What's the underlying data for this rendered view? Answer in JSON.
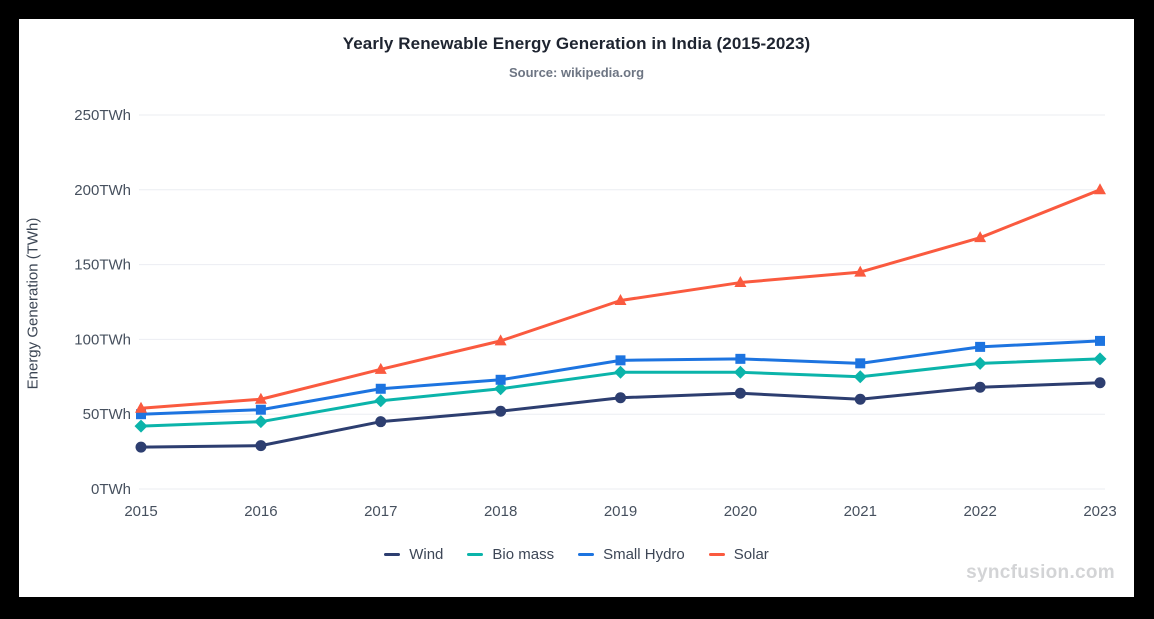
{
  "header": {
    "title": "Yearly Renewable Energy Generation in India (2015-2023)",
    "subtitle": "Source: wikipedia.org"
  },
  "watermark": "syncfusion.com",
  "colors": {
    "wind": "#2d3e70",
    "biomass": "#0bb4aa",
    "small_hydro": "#1d74e0",
    "solar": "#fa5a3f",
    "gridline": "#ebedf2",
    "tick_text": "#46505e"
  },
  "chart_data": {
    "type": "line",
    "title": "Yearly Renewable Energy Generation in India (2015-2023)",
    "subtitle": "Source: wikipedia.org",
    "xlabel": "",
    "ylabel": "Energy Generation (TWh)",
    "categories": [
      "2015",
      "2016",
      "2017",
      "2018",
      "2019",
      "2020",
      "2021",
      "2022",
      "2023"
    ],
    "series": [
      {
        "name": "Wind",
        "marker": "circle",
        "color": "#2d3e70",
        "values": [
          28,
          29,
          45,
          52,
          61,
          64,
          60,
          68,
          71
        ]
      },
      {
        "name": "Bio mass",
        "marker": "diamond",
        "color": "#0bb4aa",
        "values": [
          42,
          45,
          59,
          67,
          78,
          78,
          75,
          84,
          87
        ]
      },
      {
        "name": "Small Hydro",
        "marker": "square",
        "color": "#1d74e0",
        "values": [
          50,
          53,
          67,
          73,
          86,
          87,
          84,
          95,
          99
        ]
      },
      {
        "name": "Solar",
        "marker": "triangle",
        "color": "#fa5a3f",
        "values": [
          54,
          60,
          80,
          99,
          126,
          138,
          145,
          168,
          200
        ]
      }
    ],
    "ylim": [
      0,
      250
    ],
    "ytick_interval": 50,
    "ytick_labels": [
      "0TWh",
      "50TWh",
      "100TWh",
      "150TWh",
      "200TWh",
      "250TWh"
    ],
    "grid": "horizontal-only",
    "legend_position": "bottom"
  }
}
